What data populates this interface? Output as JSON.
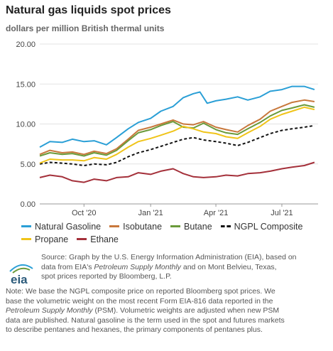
{
  "header": {
    "title": "Natural gas liquids spot prices",
    "subtitle": "dollars per million British thermal units"
  },
  "legend": {
    "row1": [
      {
        "label": "Natural Gasoline",
        "color": "#2a9fd6",
        "dash": false
      },
      {
        "label": "Isobutane",
        "color": "#c8783c",
        "dash": false
      },
      {
        "label": "Butane",
        "color": "#6a9a3a",
        "dash": false
      },
      {
        "label": "NGPL Composite",
        "color": "#111111",
        "dash": true
      }
    ],
    "row2": [
      {
        "label": "Propane",
        "color": "#f0c419",
        "dash": false
      },
      {
        "label": "Ethane",
        "color": "#a4303a",
        "dash": false
      }
    ]
  },
  "source": {
    "line1": "Source: Graph by the U.S. Energy Information Administration (EIA), based on",
    "line2_pre": "data from EIA's ",
    "line2_em": "Petroleum Supply Monthly",
    "line2_post": " and on Mont Belvieu, Texas,",
    "line3": "spot prices reported by Bloomberg, L.P."
  },
  "note": {
    "line1": "Note: We base the NGPL composite price on reported Bloomberg spot prices. We",
    "line2": "base the volumetric weight on the most recent Form EIA-816 data reported in the",
    "line3_em": "Petroleum Supply Monthly",
    "line3_post": " (PSM). Volumetric weights are adjusted when new PSM",
    "line4": "data are published. Natural gasoline is the term used in the spot and futures markets",
    "line5": "to describe pentanes and hexanes, the primary components of pentanes plus."
  },
  "logo": {
    "text": "eia",
    "icon": "eia-logo"
  },
  "chart_data": {
    "type": "line",
    "title": "Natural gas liquids spot prices",
    "ylabel": "dollars per million British thermal units",
    "xlabel": "",
    "ylim": [
      0,
      20
    ],
    "yticks": [
      0,
      5,
      10,
      15,
      20
    ],
    "ytick_labels": [
      "0.00",
      "5.00",
      "10.00",
      "15.00",
      "20.00"
    ],
    "xlim": [
      "2020-08-01",
      "2021-08-20"
    ],
    "xticks": [
      "2020-10-01",
      "2021-01-01",
      "2021-04-01",
      "2021-07-01"
    ],
    "xtick_labels": [
      "Oct '20",
      "Jan '21",
      "Apr '21",
      "Jul '21"
    ],
    "grid": "horizontal",
    "legend_position": "bottom",
    "series": [
      {
        "name": "Natural Gasoline",
        "color": "#2a9fd6",
        "dash": false,
        "points": [
          [
            "2020-08-01",
            7.1
          ],
          [
            "2020-08-15",
            7.8
          ],
          [
            "2020-09-01",
            7.7
          ],
          [
            "2020-09-15",
            8.1
          ],
          [
            "2020-10-01",
            7.8
          ],
          [
            "2020-10-15",
            7.9
          ],
          [
            "2020-11-01",
            7.4
          ],
          [
            "2020-11-15",
            8.3
          ],
          [
            "2020-12-01",
            9.4
          ],
          [
            "2020-12-15",
            10.2
          ],
          [
            "2021-01-01",
            10.7
          ],
          [
            "2021-01-15",
            11.6
          ],
          [
            "2021-02-01",
            12.2
          ],
          [
            "2021-02-15",
            13.3
          ],
          [
            "2021-03-01",
            13.8
          ],
          [
            "2021-03-10",
            14.0
          ],
          [
            "2021-03-20",
            12.6
          ],
          [
            "2021-04-01",
            12.9
          ],
          [
            "2021-04-15",
            13.1
          ],
          [
            "2021-05-01",
            13.4
          ],
          [
            "2021-05-15",
            13.0
          ],
          [
            "2021-06-01",
            13.4
          ],
          [
            "2021-06-15",
            14.1
          ],
          [
            "2021-07-01",
            14.3
          ],
          [
            "2021-07-15",
            14.7
          ],
          [
            "2021-08-01",
            14.7
          ],
          [
            "2021-08-15",
            14.3
          ]
        ]
      },
      {
        "name": "Isobutane",
        "color": "#c8783c",
        "dash": false,
        "points": [
          [
            "2020-08-01",
            6.2
          ],
          [
            "2020-08-15",
            6.7
          ],
          [
            "2020-09-01",
            6.4
          ],
          [
            "2020-09-15",
            6.5
          ],
          [
            "2020-10-01",
            6.2
          ],
          [
            "2020-10-15",
            6.6
          ],
          [
            "2020-11-01",
            6.3
          ],
          [
            "2020-11-15",
            6.9
          ],
          [
            "2020-12-01",
            8.1
          ],
          [
            "2020-12-15",
            9.2
          ],
          [
            "2021-01-01",
            9.6
          ],
          [
            "2021-01-15",
            10.0
          ],
          [
            "2021-02-01",
            10.5
          ],
          [
            "2021-02-15",
            10.0
          ],
          [
            "2021-03-01",
            9.9
          ],
          [
            "2021-03-15",
            10.3
          ],
          [
            "2021-04-01",
            9.6
          ],
          [
            "2021-04-15",
            9.3
          ],
          [
            "2021-05-01",
            9.0
          ],
          [
            "2021-05-15",
            9.8
          ],
          [
            "2021-06-01",
            10.6
          ],
          [
            "2021-06-15",
            11.6
          ],
          [
            "2021-07-01",
            12.2
          ],
          [
            "2021-07-15",
            12.7
          ],
          [
            "2021-08-01",
            13.0
          ],
          [
            "2021-08-15",
            12.8
          ]
        ]
      },
      {
        "name": "Butane",
        "color": "#6a9a3a",
        "dash": false,
        "points": [
          [
            "2020-08-01",
            6.0
          ],
          [
            "2020-08-15",
            6.4
          ],
          [
            "2020-09-01",
            6.2
          ],
          [
            "2020-09-15",
            6.3
          ],
          [
            "2020-10-01",
            6.0
          ],
          [
            "2020-10-15",
            6.4
          ],
          [
            "2020-11-01",
            6.1
          ],
          [
            "2020-11-15",
            6.7
          ],
          [
            "2020-12-01",
            7.9
          ],
          [
            "2020-12-15",
            8.9
          ],
          [
            "2021-01-01",
            9.3
          ],
          [
            "2021-01-15",
            9.8
          ],
          [
            "2021-02-01",
            10.3
          ],
          [
            "2021-02-15",
            9.6
          ],
          [
            "2021-03-01",
            9.5
          ],
          [
            "2021-03-15",
            10.1
          ],
          [
            "2021-04-01",
            9.3
          ],
          [
            "2021-04-15",
            8.9
          ],
          [
            "2021-05-01",
            8.7
          ],
          [
            "2021-05-15",
            9.4
          ],
          [
            "2021-06-01",
            10.2
          ],
          [
            "2021-06-15",
            11.0
          ],
          [
            "2021-07-01",
            11.7
          ],
          [
            "2021-07-15",
            12.0
          ],
          [
            "2021-08-01",
            12.4
          ],
          [
            "2021-08-15",
            12.1
          ]
        ]
      },
      {
        "name": "NGPL Composite",
        "color": "#111111",
        "dash": true,
        "points": [
          [
            "2020-08-01",
            5.0
          ],
          [
            "2020-08-15",
            5.2
          ],
          [
            "2020-09-01",
            5.1
          ],
          [
            "2020-09-15",
            5.0
          ],
          [
            "2020-10-01",
            4.8
          ],
          [
            "2020-10-15",
            5.0
          ],
          [
            "2020-11-01",
            4.9
          ],
          [
            "2020-11-15",
            5.2
          ],
          [
            "2020-12-01",
            5.9
          ],
          [
            "2020-12-15",
            6.4
          ],
          [
            "2021-01-01",
            6.8
          ],
          [
            "2021-01-15",
            7.2
          ],
          [
            "2021-02-01",
            7.7
          ],
          [
            "2021-02-15",
            8.1
          ],
          [
            "2021-03-01",
            8.3
          ],
          [
            "2021-03-15",
            8.0
          ],
          [
            "2021-04-01",
            7.8
          ],
          [
            "2021-04-15",
            7.6
          ],
          [
            "2021-05-01",
            7.3
          ],
          [
            "2021-05-15",
            7.7
          ],
          [
            "2021-06-01",
            8.3
          ],
          [
            "2021-06-15",
            8.8
          ],
          [
            "2021-07-01",
            9.2
          ],
          [
            "2021-07-15",
            9.4
          ],
          [
            "2021-08-01",
            9.6
          ],
          [
            "2021-08-15",
            9.8
          ]
        ]
      },
      {
        "name": "Propane",
        "color": "#f0c419",
        "dash": false,
        "points": [
          [
            "2020-08-01",
            5.1
          ],
          [
            "2020-08-15",
            5.6
          ],
          [
            "2020-09-01",
            5.5
          ],
          [
            "2020-09-15",
            5.5
          ],
          [
            "2020-10-01",
            5.4
          ],
          [
            "2020-10-15",
            5.8
          ],
          [
            "2020-11-01",
            5.6
          ],
          [
            "2020-11-15",
            6.2
          ],
          [
            "2020-12-01",
            7.1
          ],
          [
            "2020-12-15",
            7.8
          ],
          [
            "2021-01-01",
            8.2
          ],
          [
            "2021-01-15",
            8.6
          ],
          [
            "2021-02-01",
            9.1
          ],
          [
            "2021-02-15",
            9.7
          ],
          [
            "2021-03-01",
            9.4
          ],
          [
            "2021-03-15",
            9.0
          ],
          [
            "2021-04-01",
            8.8
          ],
          [
            "2021-04-15",
            8.4
          ],
          [
            "2021-05-01",
            8.2
          ],
          [
            "2021-05-15",
            8.9
          ],
          [
            "2021-06-01",
            9.7
          ],
          [
            "2021-06-15",
            10.6
          ],
          [
            "2021-07-01",
            11.2
          ],
          [
            "2021-07-15",
            11.6
          ],
          [
            "2021-08-01",
            12.1
          ],
          [
            "2021-08-15",
            11.8
          ]
        ]
      },
      {
        "name": "Ethane",
        "color": "#a4303a",
        "dash": false,
        "points": [
          [
            "2020-08-01",
            3.3
          ],
          [
            "2020-08-15",
            3.6
          ],
          [
            "2020-09-01",
            3.4
          ],
          [
            "2020-09-15",
            2.9
          ],
          [
            "2020-10-01",
            2.7
          ],
          [
            "2020-10-15",
            3.1
          ],
          [
            "2020-11-01",
            2.9
          ],
          [
            "2020-11-15",
            3.3
          ],
          [
            "2020-12-01",
            3.4
          ],
          [
            "2020-12-15",
            3.9
          ],
          [
            "2021-01-01",
            3.7
          ],
          [
            "2021-01-15",
            4.1
          ],
          [
            "2021-02-01",
            4.4
          ],
          [
            "2021-02-15",
            3.8
          ],
          [
            "2021-03-01",
            3.4
          ],
          [
            "2021-03-15",
            3.3
          ],
          [
            "2021-04-01",
            3.4
          ],
          [
            "2021-04-15",
            3.6
          ],
          [
            "2021-05-01",
            3.5
          ],
          [
            "2021-05-15",
            3.8
          ],
          [
            "2021-06-01",
            3.9
          ],
          [
            "2021-06-15",
            4.1
          ],
          [
            "2021-07-01",
            4.4
          ],
          [
            "2021-07-15",
            4.6
          ],
          [
            "2021-08-01",
            4.8
          ],
          [
            "2021-08-15",
            5.2
          ]
        ]
      }
    ]
  }
}
